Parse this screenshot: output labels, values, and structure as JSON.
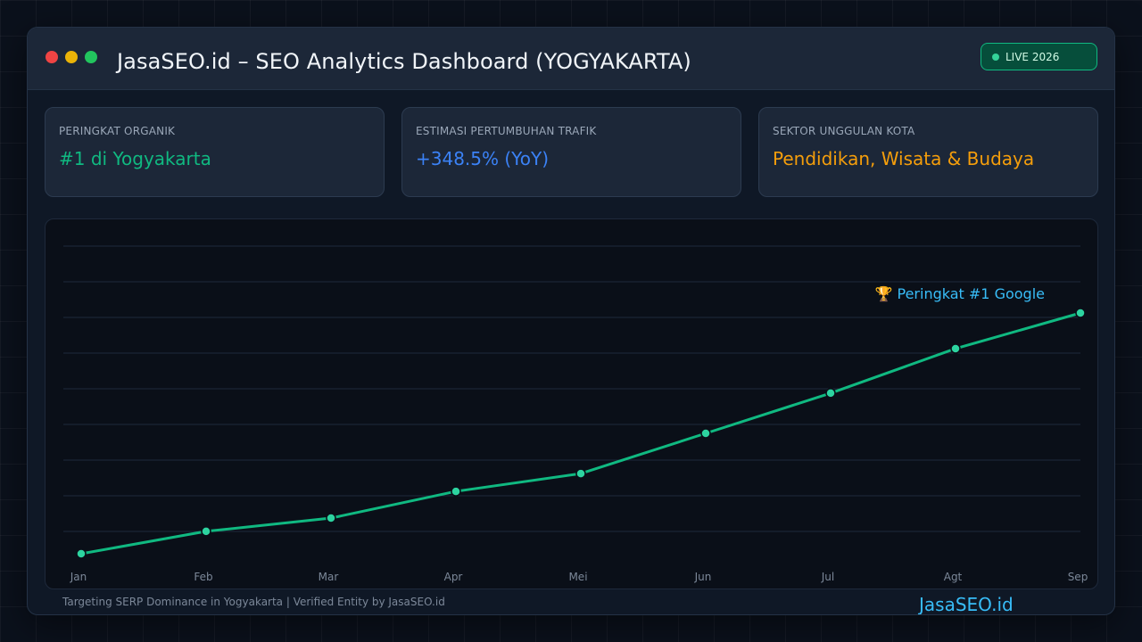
{
  "window": {
    "title": "JasaSEO.id – SEO Analytics Dashboard (YOGYAKARTA)",
    "live_badge": "LIVE 2026"
  },
  "cards": [
    {
      "label": "PERINGKAT ORGANIK",
      "value": "#1 di Yogyakarta",
      "color": "#10b981"
    },
    {
      "label": "ESTIMASI PERTUMBUHAN TRAFIK",
      "value": "+348.5% (YoY)",
      "color": "#3b82f6"
    },
    {
      "label": "SEKTOR UNGGULAN KOTA",
      "value": "Pendidikan, Wisata & Budaya",
      "color": "#f59e0b"
    }
  ],
  "chart_data": {
    "type": "line",
    "categories": [
      "Jan",
      "Feb",
      "Mar",
      "Apr",
      "Mei",
      "Jun",
      "Jul",
      "Agt",
      "Sep"
    ],
    "values": [
      0.0,
      0.093,
      0.148,
      0.259,
      0.333,
      0.5,
      0.667,
      0.852,
      1.0
    ],
    "annotation": "🏆 Peringkat #1 Google",
    "line_color": "#10b981",
    "annotation_color": "#38bdf8",
    "grid": true,
    "ylim": [
      0,
      1
    ]
  },
  "footer": {
    "text": "Targeting SERP Dominance in Yogyakarta | Verified Entity by JasaSEO.id",
    "brand": "JasaSEO.id"
  }
}
